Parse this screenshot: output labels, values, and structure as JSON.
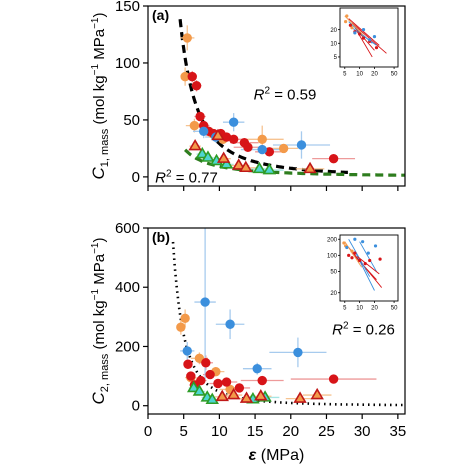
{
  "chart_data": [
    {
      "type": "scatter",
      "panel_label": "(a)",
      "ylabel": "C1, mass (mol kg−1 MPa−1)",
      "ylabel_parts": {
        "sym": "C",
        "sub": "1, mass",
        "units_pre": " (mol kg",
        "exp1": "−1",
        "units_mid": " MPa",
        "exp2": "−1",
        "units_post": ")"
      },
      "xlim": [
        0,
        36
      ],
      "ylim": [
        -8,
        150
      ],
      "yticks": [
        0,
        50,
        100,
        150
      ],
      "annotations": [
        {
          "text": "R",
          "sup": "2",
          "rest": " = 0.59",
          "x": 14.8,
          "y": 68
        },
        {
          "text": "R",
          "sup": "2",
          "rest": " = 0.77",
          "x": 1.0,
          "y": -5
        }
      ],
      "curves": [
        {
          "label": "black-fit",
          "color": "#000000",
          "dash": "8,5",
          "width": 3.2,
          "type": "power",
          "a": 2600,
          "b": -1.95,
          "x0": 4.5,
          "x1": 28
        },
        {
          "label": "green-fit",
          "color": "#2e7d1e",
          "dash": "8,5",
          "width": 3.2,
          "type": "power",
          "a": 260,
          "b": -1.45,
          "x0": 5.2,
          "x1": 36
        }
      ],
      "series": [
        {
          "marker": "circle",
          "fill": "#f39a4a",
          "stroke": "#f39a4a",
          "err_color": "#f6c391",
          "points": [
            [
              5.5,
              122,
              1,
              11
            ],
            [
              5.2,
              88,
              0.6,
              8
            ],
            [
              6.5,
              45,
              1.2,
              6
            ],
            [
              9.0,
              38,
              1.5,
              5
            ],
            [
              10.5,
              33,
              1.5,
              4
            ],
            [
              16,
              33,
              3,
              12
            ],
            [
              19,
              25,
              2,
              3
            ]
          ]
        },
        {
          "marker": "circle",
          "fill": "#d71418",
          "stroke": "#d71418",
          "err_color": "#ee9a9a",
          "points": [
            [
              6.2,
              88,
              0.6,
              5
            ],
            [
              6.8,
              80,
              0.7,
              5
            ],
            [
              7.3,
              53,
              0.8,
              4
            ],
            [
              7.8,
              45,
              0.8,
              3
            ],
            [
              8.5,
              40,
              1.2,
              3
            ],
            [
              9.2,
              38,
              1.0,
              3
            ],
            [
              10.2,
              38,
              1.2,
              3
            ],
            [
              11,
              35,
              1.5,
              3
            ],
            [
              12,
              33,
              1.5,
              3
            ],
            [
              13.5,
              30,
              2,
              3
            ],
            [
              14,
              26,
              2,
              2
            ],
            [
              17,
              22,
              2,
              2
            ],
            [
              26,
              16,
              3,
              2
            ]
          ]
        },
        {
          "marker": "circle",
          "fill": "#3b8fdd",
          "stroke": "#3b8fdd",
          "err_color": "#a7cbee",
          "points": [
            [
              7.8,
              40,
              1.5,
              6
            ],
            [
              9.5,
              35,
              1.5,
              5
            ],
            [
              12,
              48,
              1.5,
              8
            ],
            [
              16,
              24,
              3,
              4
            ],
            [
              21.5,
              28,
              4,
              12
            ]
          ]
        },
        {
          "marker": "triangle",
          "fill": "#4dd5d1",
          "stroke": "#2e9c27",
          "err_color": "#a6e6e3",
          "points": [
            [
              7.6,
              20,
              0.8,
              2
            ],
            [
              8.4,
              17,
              0.8,
              2
            ],
            [
              9.6,
              14,
              0.8,
              2
            ],
            [
              11,
              11,
              1,
              2
            ],
            [
              15.6,
              7,
              1.5,
              1
            ],
            [
              17,
              6,
              2,
              1
            ]
          ]
        },
        {
          "marker": "triangle",
          "fill": "#f39a4a",
          "stroke": "#c01818",
          "err_color": "#f6c391",
          "points": [
            [
              6.6,
              27,
              0.8,
              3
            ],
            [
              9.8,
              36,
              1,
              4
            ],
            [
              10.6,
              16,
              1,
              2
            ],
            [
              12.7,
              10,
              1.5,
              2
            ],
            [
              13.7,
              8,
              1.5,
              1
            ],
            [
              22.7,
              7,
              2,
              1
            ]
          ]
        }
      ]
    },
    {
      "type": "scatter",
      "panel_label": "(b)",
      "ylabel": "C2, mass (mol kg−1 MPa−1)",
      "ylabel_parts": {
        "sym": "C",
        "sub": "2, mass",
        "units_pre": " (mol kg",
        "exp1": "−1",
        "units_mid": " MPa",
        "exp2": "−1",
        "units_post": ")"
      },
      "xlabel": "ε (MPa)",
      "xlabel_parts": {
        "sym": "ε",
        "rest": " (MPa)"
      },
      "xlim": [
        0,
        36
      ],
      "ylim": [
        -28,
        600
      ],
      "xticks": [
        0,
        5,
        10,
        15,
        20,
        25,
        30,
        35
      ],
      "yticks": [
        0,
        200,
        400,
        600
      ],
      "annotations": [
        {
          "text": "R",
          "sup": "2",
          "rest": " = 0.26",
          "x": 25.8,
          "y": 240
        }
      ],
      "curves": [
        {
          "label": "black-fit",
          "color": "#000000",
          "dash": "1.5,4",
          "width": 2.6,
          "type": "power",
          "a": 10500,
          "b": -2.35,
          "x0": 3.5,
          "x1": 36
        }
      ],
      "series": [
        {
          "marker": "circle",
          "fill": "#f39a4a",
          "stroke": "#f39a4a",
          "err_color": "#f6c391",
          "points": [
            [
              4.6,
              265,
              0.5,
              25
            ],
            [
              5.2,
              295,
              0.5,
              30
            ],
            [
              6.0,
              95,
              0.8,
              10
            ],
            [
              7.2,
              160,
              1.2,
              20
            ],
            [
              9.5,
              115,
              1.2,
              15
            ],
            [
              11.5,
              55,
              1.5,
              10
            ]
          ]
        },
        {
          "marker": "circle",
          "fill": "#d71418",
          "stroke": "#d71418",
          "err_color": "#ee9a9a",
          "points": [
            [
              5.6,
              140,
              0.6,
              15
            ],
            [
              6.0,
              100,
              0.6,
              12
            ],
            [
              6.5,
              70,
              0.7,
              10
            ],
            [
              7.4,
              85,
              0.8,
              10
            ],
            [
              8.1,
              145,
              1.0,
              25
            ],
            [
              8.7,
              105,
              1.0,
              15
            ],
            [
              9.8,
              75,
              1.2,
              10
            ],
            [
              11.0,
              80,
              1.5,
              12
            ],
            [
              12.8,
              60,
              1.5,
              10
            ],
            [
              16,
              85,
              3,
              10
            ],
            [
              26,
              90,
              6,
              10
            ]
          ]
        },
        {
          "marker": "circle",
          "fill": "#3b8fdd",
          "stroke": "#3b8fdd",
          "err_color": "#a7cbee",
          "points": [
            [
              5.5,
              185,
              1,
              30
            ],
            [
              8.0,
              350,
              1.5,
              260
            ],
            [
              11.5,
              275,
              2,
              50
            ],
            [
              15.3,
              125,
              2,
              20
            ],
            [
              21,
              180,
              4,
              50
            ]
          ]
        },
        {
          "marker": "triangle",
          "fill": "#4dd5d1",
          "stroke": "#2e9c27",
          "err_color": "#a6e6e3",
          "points": [
            [
              6.4,
              60,
              0.7,
              10
            ],
            [
              7.2,
              48,
              0.8,
              8
            ],
            [
              8.3,
              28,
              0.8,
              6
            ],
            [
              9.0,
              20,
              0.8,
              5
            ],
            [
              14.7,
              22,
              1.5,
              5
            ],
            [
              16.4,
              28,
              2,
              5
            ]
          ]
        },
        {
          "marker": "triangle",
          "fill": "#f39a4a",
          "stroke": "#c01818",
          "err_color": "#f6c391",
          "points": [
            [
              10.4,
              30,
              1,
              6
            ],
            [
              12.0,
              36,
              1.2,
              6
            ],
            [
              13.8,
              24,
              1.5,
              5
            ],
            [
              15.8,
              32,
              1.5,
              6
            ],
            [
              21.3,
              24,
              2,
              5
            ],
            [
              23.7,
              36,
              2,
              6
            ]
          ]
        }
      ]
    }
  ],
  "insets": [
    {
      "panel": "(a)",
      "xticks": [
        "5",
        "10",
        "20",
        "50"
      ],
      "yticks": [
        "5",
        "10",
        "20"
      ],
      "xlog": [
        4,
        60
      ],
      "ylog": [
        3,
        60
      ],
      "yticks_val": [
        5,
        10,
        20
      ],
      "xticks_val": [
        5,
        10,
        20,
        50
      ],
      "lines": [
        {
          "color": "#d71418",
          "pts": [
            [
              6,
              35
            ],
            [
              25,
              9
            ]
          ]
        },
        {
          "color": "#d71418",
          "pts": [
            [
              7,
              28
            ],
            [
              35,
              6
            ]
          ]
        },
        {
          "color": "#d71418",
          "pts": [
            [
              8,
              22
            ],
            [
              20,
              7
            ]
          ]
        },
        {
          "color": "#3b8fdd",
          "pts": [
            [
              6,
              30
            ],
            [
              18,
              10
            ]
          ]
        },
        {
          "color": "#3b8fdd",
          "pts": [
            [
              7,
              22
            ],
            [
              22,
              9
            ]
          ]
        },
        {
          "color": "#f39a4a",
          "pts": [
            [
              5,
              40
            ],
            [
              12,
              15
            ]
          ]
        },
        {
          "color": "#d71418",
          "pts": [
            [
              9,
              18
            ],
            [
              18,
              5
            ]
          ]
        }
      ],
      "points": [
        {
          "color": "#f39a4a",
          "pts": [
            [
              5.5,
              40
            ],
            [
              5.2,
              30
            ],
            [
              7,
              22
            ]
          ]
        },
        {
          "color": "#d71418",
          "pts": [
            [
              6.5,
              25
            ],
            [
              8,
              18
            ],
            [
              10,
              16
            ],
            [
              12,
              13
            ],
            [
              16,
              11
            ],
            [
              22,
              8
            ]
          ]
        },
        {
          "color": "#3b8fdd",
          "pts": [
            [
              8,
              17
            ],
            [
              12,
              20
            ],
            [
              16,
              12
            ],
            [
              20,
              14
            ]
          ]
        }
      ]
    },
    {
      "panel": "(b)",
      "xticks": [
        "5",
        "10",
        "20",
        "50"
      ],
      "yticks": [
        "20",
        "50",
        "100",
        "200"
      ],
      "xlog": [
        4,
        60
      ],
      "ylog": [
        14,
        240
      ],
      "yticks_val": [
        20,
        50,
        100,
        200
      ],
      "xticks_val": [
        5,
        10,
        20,
        50
      ],
      "lines": [
        {
          "color": "#d71418",
          "pts": [
            [
              6,
              140
            ],
            [
              28,
              25
            ]
          ]
        },
        {
          "color": "#d71418",
          "pts": [
            [
              7,
              110
            ],
            [
              22,
              35
            ]
          ]
        },
        {
          "color": "#3b8fdd",
          "pts": [
            [
              6,
              200
            ],
            [
              16,
              40
            ]
          ]
        },
        {
          "color": "#3b8fdd",
          "pts": [
            [
              8,
              120
            ],
            [
              20,
              22
            ]
          ]
        },
        {
          "color": "#3b8fdd",
          "pts": [
            [
              10,
              180
            ],
            [
              22,
              50
            ]
          ]
        },
        {
          "color": "#f39a4a",
          "pts": [
            [
              5,
              180
            ],
            [
              11,
              60
            ]
          ]
        },
        {
          "color": "#d71418",
          "pts": [
            [
              9,
              95
            ],
            [
              25,
              45
            ]
          ]
        }
      ],
      "points": [
        {
          "color": "#f39a4a",
          "pts": [
            [
              4.8,
              170
            ],
            [
              5.2,
              150
            ],
            [
              7,
              120
            ]
          ]
        },
        {
          "color": "#d71418",
          "pts": [
            [
              6,
              100
            ],
            [
              7,
              90
            ],
            [
              8,
              110
            ],
            [
              10,
              80
            ],
            [
              13,
              70
            ],
            [
              16,
              80
            ],
            [
              26,
              85
            ]
          ]
        },
        {
          "color": "#3b8fdd",
          "pts": [
            [
              5.5,
              140
            ],
            [
              8,
              200
            ],
            [
              11.5,
              180
            ],
            [
              15,
              110
            ],
            [
              21,
              150
            ]
          ]
        }
      ]
    }
  ]
}
